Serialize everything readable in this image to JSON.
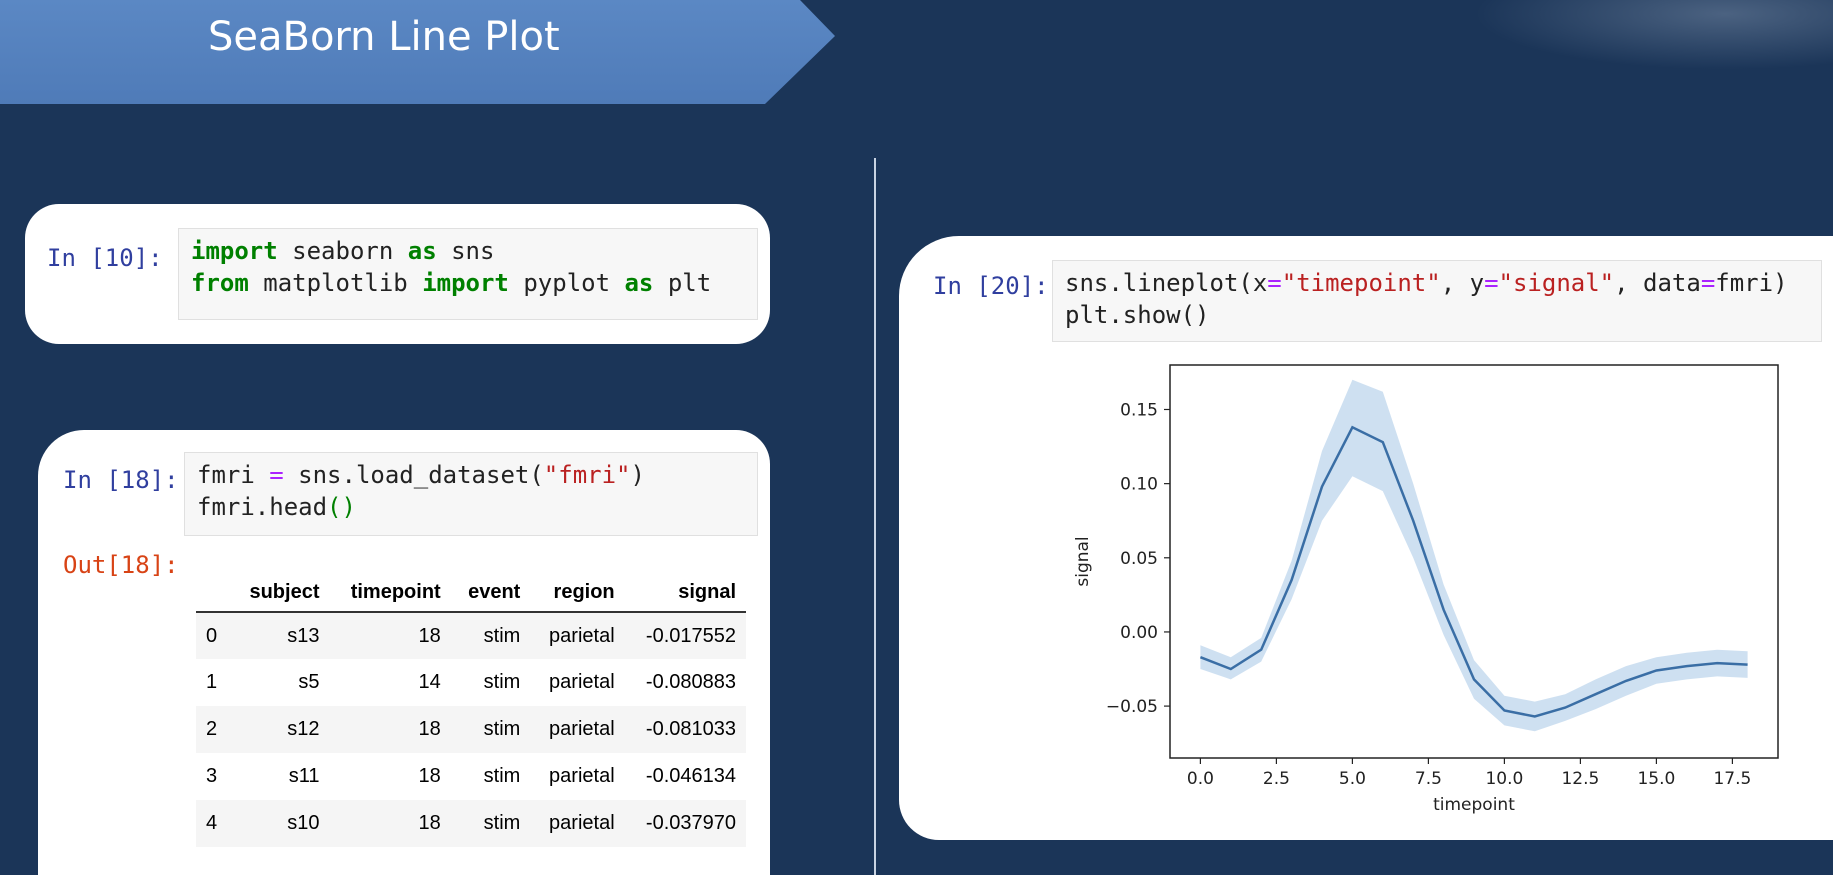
{
  "slide": {
    "title": "SeaBorn Line Plot"
  },
  "cell10": {
    "prompt": "In [10]:",
    "line1": {
      "kw1": "import",
      "mid": " seaborn ",
      "kw2": "as",
      "end": " sns"
    },
    "line2": {
      "kw1": "from",
      "mid": " matplotlib ",
      "kw2": "import",
      "mid2": " pyplot ",
      "kw3": "as",
      "end": " plt"
    }
  },
  "cell18": {
    "prompt": "In [18]:",
    "line1": {
      "a": "fmri ",
      "op": "=",
      "b": " sns.load_dataset(",
      "str": "\"fmri\"",
      "c": ")"
    },
    "line2": {
      "a": "fmri.head",
      "c": "()"
    },
    "out_prompt": "Out[18]:",
    "table": {
      "columns": [
        "",
        "subject",
        "timepoint",
        "event",
        "region",
        "signal"
      ],
      "rows": [
        [
          "0",
          "s13",
          "18",
          "stim",
          "parietal",
          "-0.017552"
        ],
        [
          "1",
          "s5",
          "14",
          "stim",
          "parietal",
          "-0.080883"
        ],
        [
          "2",
          "s12",
          "18",
          "stim",
          "parietal",
          "-0.081033"
        ],
        [
          "3",
          "s11",
          "18",
          "stim",
          "parietal",
          "-0.046134"
        ],
        [
          "4",
          "s10",
          "18",
          "stim",
          "parietal",
          "-0.037970"
        ]
      ]
    }
  },
  "cell20": {
    "prompt": "In [20]:",
    "line1": {
      "a": "sns.lineplot(x",
      "op1": "=",
      "s1": "\"timepoint\"",
      "b": ", y",
      "op2": "=",
      "s2": "\"signal\"",
      "c": ", data",
      "op3": "=",
      "d": "fmri)"
    },
    "line2": "plt.show()"
  },
  "colors": {
    "background": "#1b3558",
    "banner": "#4f7bb8",
    "line": "#3a6ea5",
    "band": "#c6dbef"
  },
  "chart_data": {
    "type": "line",
    "title": "",
    "xlabel": "timepoint",
    "ylabel": "signal",
    "xlim": [
      -1,
      19
    ],
    "ylim": [
      -0.085,
      0.18
    ],
    "xticks": [
      0.0,
      2.5,
      5.0,
      7.5,
      10.0,
      12.5,
      15.0,
      17.5
    ],
    "xtick_labels": [
      "0.0",
      "2.5",
      "5.0",
      "7.5",
      "10.0",
      "12.5",
      "15.0",
      "17.5"
    ],
    "yticks": [
      -0.05,
      0.0,
      0.05,
      0.1,
      0.15
    ],
    "ytick_labels": [
      "−0.05",
      "0.00",
      "0.05",
      "0.10",
      "0.15"
    ],
    "grid": false,
    "series": [
      {
        "x": [
          0,
          1,
          2,
          3,
          4,
          5,
          6,
          7,
          8,
          9,
          10,
          11,
          12,
          13,
          14,
          15,
          16,
          17,
          18
        ],
        "mean": [
          -0.017,
          -0.025,
          -0.012,
          0.035,
          0.098,
          0.138,
          0.128,
          0.075,
          0.015,
          -0.032,
          -0.053,
          -0.057,
          -0.051,
          -0.042,
          -0.033,
          -0.026,
          -0.023,
          -0.021,
          -0.022
        ],
        "lower": [
          -0.025,
          -0.032,
          -0.02,
          0.022,
          0.075,
          0.105,
          0.095,
          0.05,
          -0.002,
          -0.045,
          -0.063,
          -0.067,
          -0.06,
          -0.052,
          -0.043,
          -0.035,
          -0.032,
          -0.03,
          -0.031
        ],
        "upper": [
          -0.009,
          -0.017,
          -0.004,
          0.048,
          0.122,
          0.17,
          0.162,
          0.1,
          0.032,
          -0.019,
          -0.043,
          -0.047,
          -0.042,
          -0.032,
          -0.023,
          -0.017,
          -0.014,
          -0.012,
          -0.013
        ]
      }
    ]
  }
}
